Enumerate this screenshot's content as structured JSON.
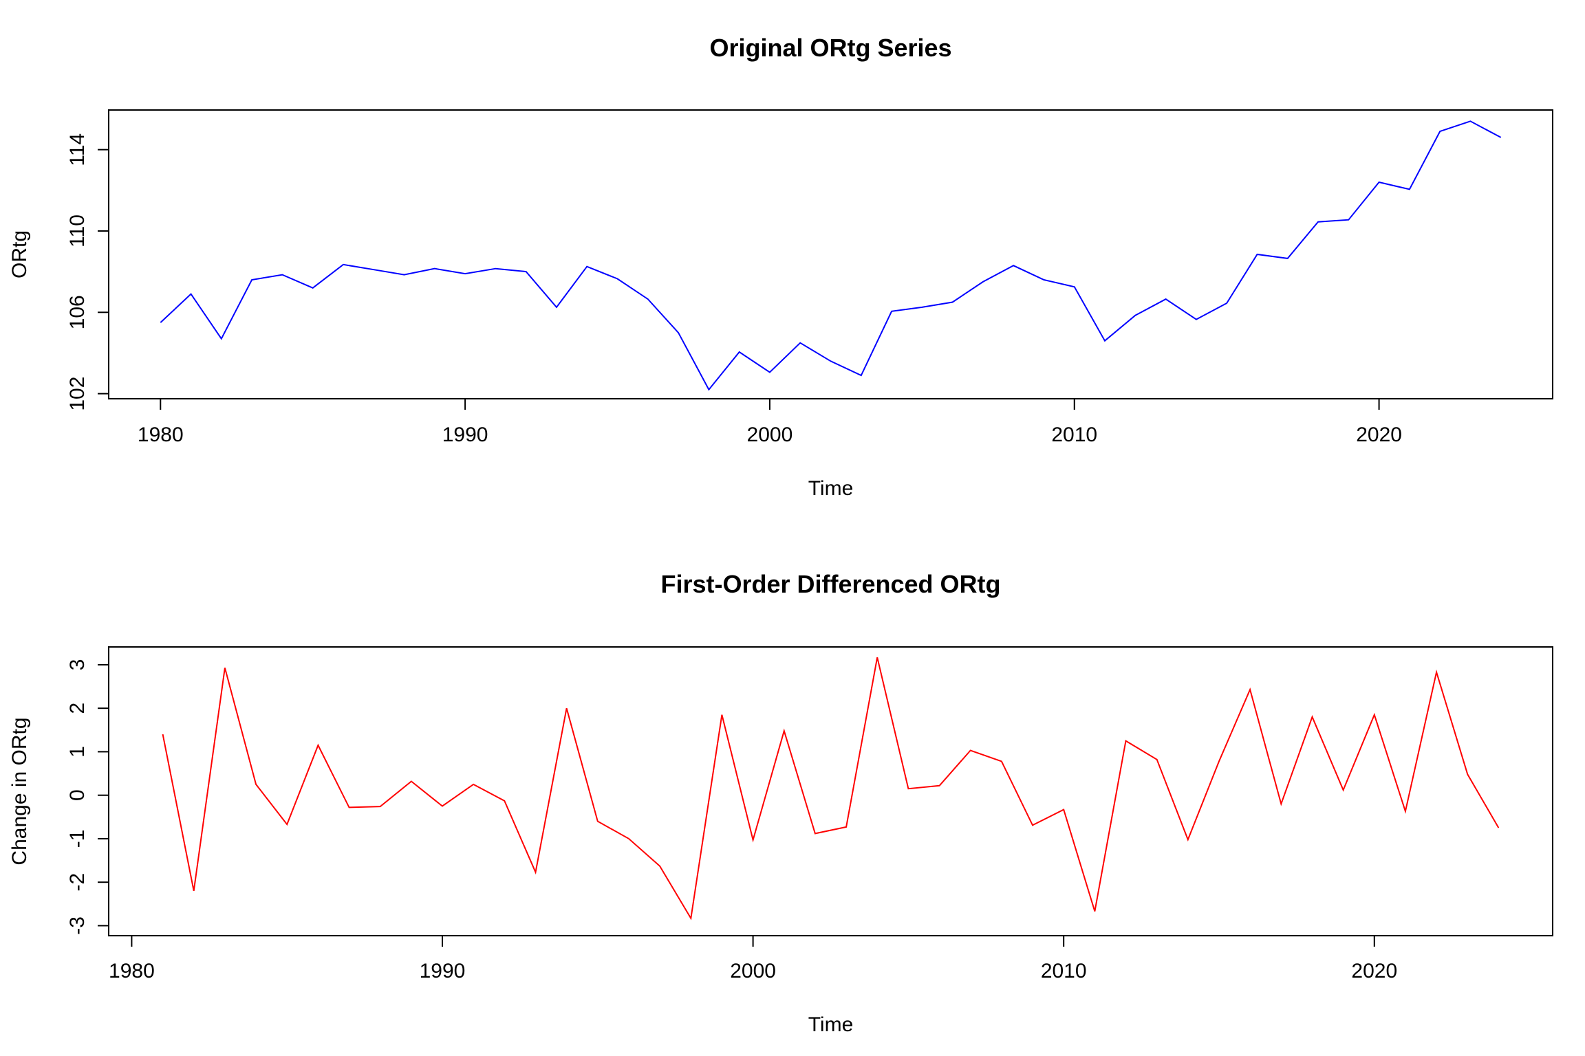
{
  "chart_data": [
    {
      "type": "line",
      "title": "Original ORtg Series",
      "xlabel": "Time",
      "ylabel": "ORtg",
      "xlim": [
        1978.3,
        2025.7
      ],
      "ylim": [
        101.75,
        115.95
      ],
      "x_ticks": [
        1980,
        1990,
        2000,
        2010,
        2020
      ],
      "y_ticks": [
        102,
        106,
        110,
        114
      ],
      "grid": false,
      "color": "#0000ff",
      "x": [
        1980,
        1981,
        1982,
        1983,
        1984,
        1985,
        1986,
        1987,
        1988,
        1989,
        1990,
        1991,
        1992,
        1993,
        1994,
        1995,
        1996,
        1997,
        1998,
        1999,
        2000,
        2001,
        2002,
        2003,
        2004,
        2005,
        2006,
        2007,
        2008,
        2009,
        2010,
        2011,
        2012,
        2013,
        2014,
        2015,
        2016,
        2017,
        2018,
        2019,
        2020,
        2021,
        2022,
        2023,
        2024
      ],
      "values": [
        105.5,
        106.9,
        104.7,
        107.6,
        107.85,
        107.2,
        108.35,
        108.1,
        107.85,
        108.15,
        107.9,
        108.15,
        108.0,
        106.25,
        108.25,
        107.65,
        106.65,
        105.0,
        102.2,
        104.05,
        103.05,
        104.5,
        103.6,
        102.9,
        106.05,
        106.25,
        106.5,
        107.5,
        108.3,
        107.6,
        107.25,
        104.6,
        105.85,
        106.65,
        105.65,
        106.45,
        108.85,
        108.65,
        110.45,
        110.55,
        112.4,
        112.05,
        114.9,
        115.4,
        114.6
      ]
    },
    {
      "type": "line",
      "title": "First-Order Differenced ORtg",
      "xlabel": "Time",
      "ylabel": "Change in ORtg",
      "xlim": [
        1979.26,
        2025.74
      ],
      "ylim": [
        -3.23,
        3.41
      ],
      "x_ticks": [
        1980,
        1990,
        2000,
        2010,
        2020
      ],
      "y_ticks": [
        -3,
        -2,
        -1,
        0,
        1,
        2,
        3
      ],
      "grid": false,
      "color": "#ff0000",
      "x": [
        1981,
        1982,
        1983,
        1984,
        1985,
        1986,
        1987,
        1988,
        1989,
        1990,
        1991,
        1992,
        1993,
        1994,
        1995,
        1996,
        1997,
        1998,
        1999,
        2000,
        2001,
        2002,
        2003,
        2004,
        2005,
        2006,
        2007,
        2008,
        2009,
        2010,
        2011,
        2012,
        2013,
        2014,
        2015,
        2016,
        2017,
        2018,
        2019,
        2020,
        2021,
        2022,
        2023,
        2024
      ],
      "values": [
        1.4,
        -2.2,
        2.93,
        0.25,
        -0.67,
        1.15,
        -0.28,
        -0.26,
        0.32,
        -0.25,
        0.25,
        -0.13,
        -1.77,
        2.0,
        -0.6,
        -1.0,
        -1.63,
        -2.83,
        1.85,
        -1.03,
        1.48,
        -0.88,
        -0.73,
        3.17,
        0.15,
        0.22,
        1.03,
        0.78,
        -0.69,
        -0.33,
        -2.67,
        1.25,
        0.82,
        -1.02,
        0.78,
        2.43,
        -0.2,
        1.8,
        0.12,
        1.85,
        -0.37,
        2.83,
        0.48,
        -0.75
      ]
    }
  ]
}
